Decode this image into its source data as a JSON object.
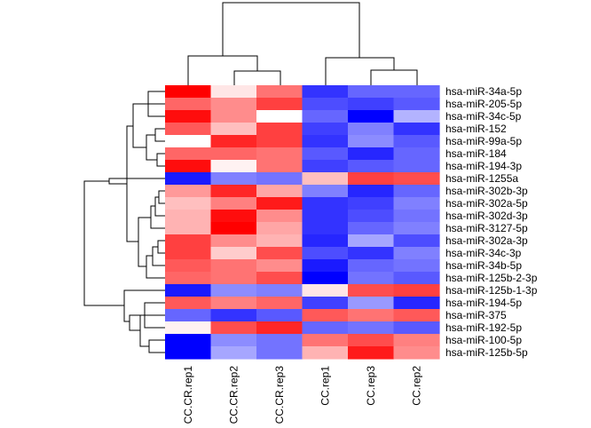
{
  "chart_data": {
    "type": "heatmap",
    "title": "",
    "color_scale": {
      "low": "#0000FF",
      "mid": "#FFFFFF",
      "high": "#FF0000"
    },
    "columns": [
      "CC.CR.rep1",
      "CC.CR.rep2",
      "CC.CR.rep3",
      "CC.rep1",
      "CC.rep3",
      "CC.rep2"
    ],
    "rows": [
      "hsa-miR-34a-5p",
      "hsa-miR-205-5p",
      "hsa-miR-34c-5p",
      "hsa-miR-152",
      "hsa-miR-99a-5p",
      "hsa-miR-184",
      "hsa-miR-194-3p",
      "hsa-miR-1255a",
      "hsa-miR-302b-3p",
      "hsa-miR-302a-5p",
      "hsa-miR-302d-3p",
      "hsa-miR-3127-5p",
      "hsa-miR-302a-3p",
      "hsa-miR-34c-3p",
      "hsa-miR-34b-5p",
      "hsa-miR-125b-2-3p",
      "hsa-miR-125b-1-3p",
      "hsa-miR-194-5p",
      "hsa-miR-375",
      "hsa-miR-192-5p",
      "hsa-miR-100-5p",
      "hsa-miR-125b-5p"
    ],
    "values": [
      [
        1.0,
        0.1,
        0.55,
        -0.8,
        -0.6,
        -0.6
      ],
      [
        0.6,
        0.45,
        0.75,
        -0.7,
        -0.75,
        -0.65
      ],
      [
        0.95,
        0.45,
        0.0,
        -0.6,
        -1.0,
        -0.3
      ],
      [
        0.65,
        0.25,
        0.75,
        -0.75,
        -0.5,
        -0.8
      ],
      [
        0.0,
        0.85,
        0.75,
        -0.8,
        -0.45,
        -0.65
      ],
      [
        0.6,
        0.6,
        0.55,
        -0.65,
        -0.85,
        -0.6
      ],
      [
        0.95,
        0.05,
        0.55,
        -0.75,
        -0.65,
        -0.6
      ],
      [
        -0.9,
        -0.5,
        -0.55,
        0.25,
        0.75,
        0.7
      ],
      [
        0.4,
        0.85,
        0.35,
        -0.5,
        -0.85,
        -0.6
      ],
      [
        0.25,
        0.5,
        0.9,
        -0.8,
        -0.75,
        -0.5
      ],
      [
        0.3,
        0.95,
        0.45,
        -0.8,
        -0.7,
        -0.55
      ],
      [
        0.3,
        1.0,
        0.35,
        -0.8,
        -0.6,
        -0.5
      ],
      [
        0.75,
        0.45,
        0.3,
        -0.85,
        -0.35,
        -0.7
      ],
      [
        0.75,
        0.2,
        0.7,
        -0.7,
        -0.8,
        -0.5
      ],
      [
        0.65,
        0.55,
        0.45,
        -0.9,
        -0.6,
        -0.55
      ],
      [
        0.6,
        0.55,
        0.7,
        -1.0,
        -0.55,
        -0.65
      ],
      [
        -0.9,
        -0.45,
        -0.5,
        0.1,
        0.7,
        0.75
      ],
      [
        0.65,
        0.5,
        0.6,
        -0.75,
        -0.4,
        -0.85
      ],
      [
        -0.6,
        -0.8,
        -0.65,
        0.65,
        0.55,
        0.65
      ],
      [
        0.05,
        0.7,
        0.85,
        -0.6,
        -0.55,
        -0.65
      ],
      [
        -1.0,
        -0.45,
        -0.55,
        0.55,
        0.7,
        0.5
      ],
      [
        -1.0,
        -0.35,
        -0.55,
        0.3,
        0.9,
        0.45
      ]
    ]
  }
}
